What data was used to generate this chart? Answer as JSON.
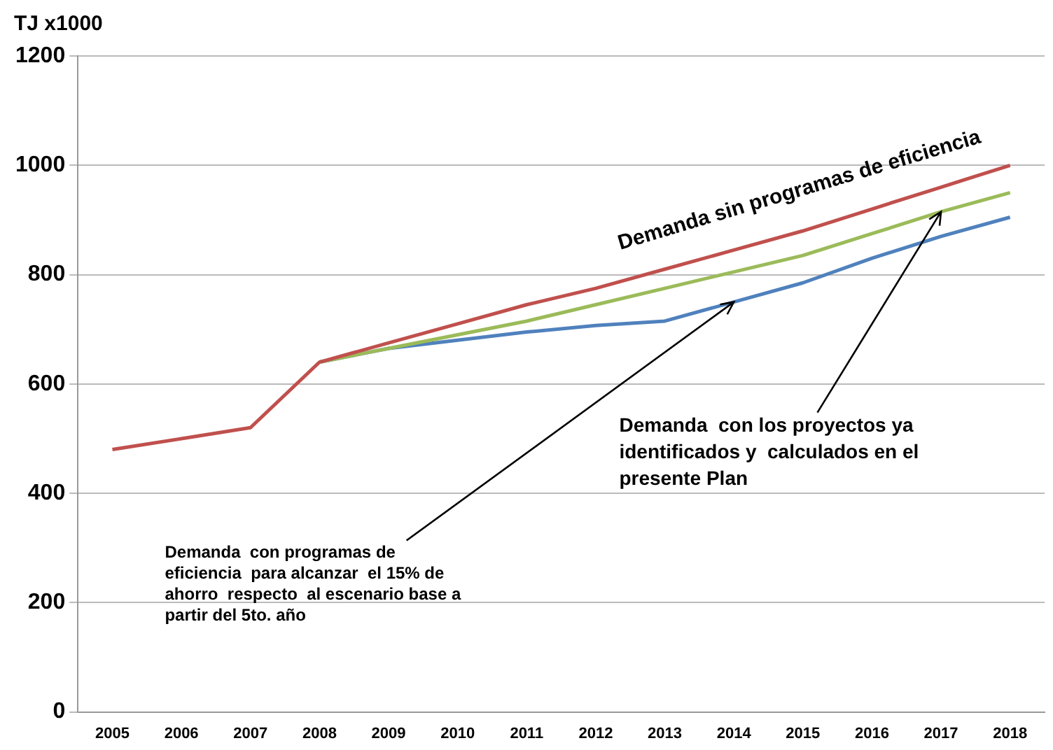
{
  "chart_data": {
    "type": "line",
    "ylabel": "TJ x1000",
    "categories": [
      "2005",
      "2006",
      "2007",
      "2008",
      "2009",
      "2010",
      "2011",
      "2012",
      "2013",
      "2014",
      "2015",
      "2016",
      "2017",
      "2018"
    ],
    "series": [
      {
        "name": "Demanda sin programas de eficiencia",
        "color": "#c0504d",
        "values": [
          480,
          500,
          520,
          640,
          675,
          710,
          745,
          775,
          810,
          845,
          880,
          920,
          960,
          1000
        ]
      },
      {
        "color": "#9bbb59",
        "values": [
          null,
          null,
          null,
          640,
          665,
          690,
          715,
          745,
          775,
          805,
          835,
          875,
          915,
          950
        ]
      },
      {
        "color": "#4f81bd",
        "values": [
          null,
          null,
          null,
          640,
          665,
          680,
          695,
          707,
          715,
          750,
          785,
          830,
          870,
          905
        ]
      }
    ],
    "annotations": [
      {
        "text": "Demanda  con los proyectos ya identificados y  calculados en el presente Plan",
        "x": "2017",
        "y": 915
      },
      {
        "text": "Demanda  con programas de eficiencia  para alcanzar  el 15% de ahorro  respecto  al escenario base a partir del 5to. año",
        "x": "2014",
        "y": 750
      }
    ],
    "ylim": [
      0,
      1200
    ],
    "yticks": [
      0,
      200,
      400,
      600,
      800,
      1000,
      1200
    ],
    "grid": "y",
    "legend": false,
    "marker": "none",
    "line_style": "solid"
  }
}
